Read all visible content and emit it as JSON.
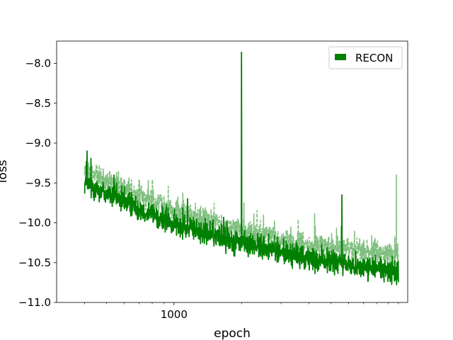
{
  "chart_data": {
    "type": "line",
    "xlabel": "epoch",
    "ylabel": "loss",
    "x_scale": "log",
    "xlim": [
      300,
      11000
    ],
    "ylim": [
      -11.0,
      -7.72
    ],
    "x_ticks": [
      {
        "value": 1000,
        "label": "1000"
      }
    ],
    "x_minor_ticks": [
      400,
      500,
      600,
      700,
      800,
      900,
      2000,
      3000,
      4000,
      5000,
      6000,
      7000,
      8000,
      9000,
      10000
    ],
    "y_ticks": [
      {
        "value": -8.0,
        "label": "−8.0"
      },
      {
        "value": -8.5,
        "label": "−8.5"
      },
      {
        "value": -9.0,
        "label": "−9.0"
      },
      {
        "value": -9.5,
        "label": "−9.5"
      },
      {
        "value": -10.0,
        "label": "−10.0"
      },
      {
        "value": -10.5,
        "label": "−10.5"
      },
      {
        "value": -11.0,
        "label": "−11.0"
      }
    ],
    "grid": false,
    "legend": {
      "position": "top-right",
      "entries": [
        "RECON"
      ]
    },
    "series": [
      {
        "name": "RECON",
        "style": "solid",
        "color": "#008000",
        "x_range": [
          400,
          10000
        ],
        "trend": [
          [
            400,
            -9.5
          ],
          [
            1000,
            -10.02
          ],
          [
            2000,
            -10.25
          ],
          [
            4000,
            -10.45
          ],
          [
            10000,
            -10.62
          ]
        ],
        "noise": 0.22,
        "spikes": [
          [
            410,
            -9.1
          ],
          [
            1150,
            -9.7
          ],
          [
            2000,
            -7.86
          ],
          [
            5600,
            -9.65
          ]
        ]
      },
      {
        "name": "",
        "style": "dashed",
        "color": "#7fbf7f",
        "x_range": [
          400,
          10000
        ],
        "trend": [
          [
            400,
            -9.35
          ],
          [
            1000,
            -9.85
          ],
          [
            2000,
            -10.1
          ],
          [
            4000,
            -10.28
          ],
          [
            10000,
            -10.4
          ]
        ],
        "noise": 0.22,
        "spikes": [
          [
            2050,
            -9.75
          ],
          [
            9800,
            -9.4
          ]
        ]
      }
    ]
  }
}
